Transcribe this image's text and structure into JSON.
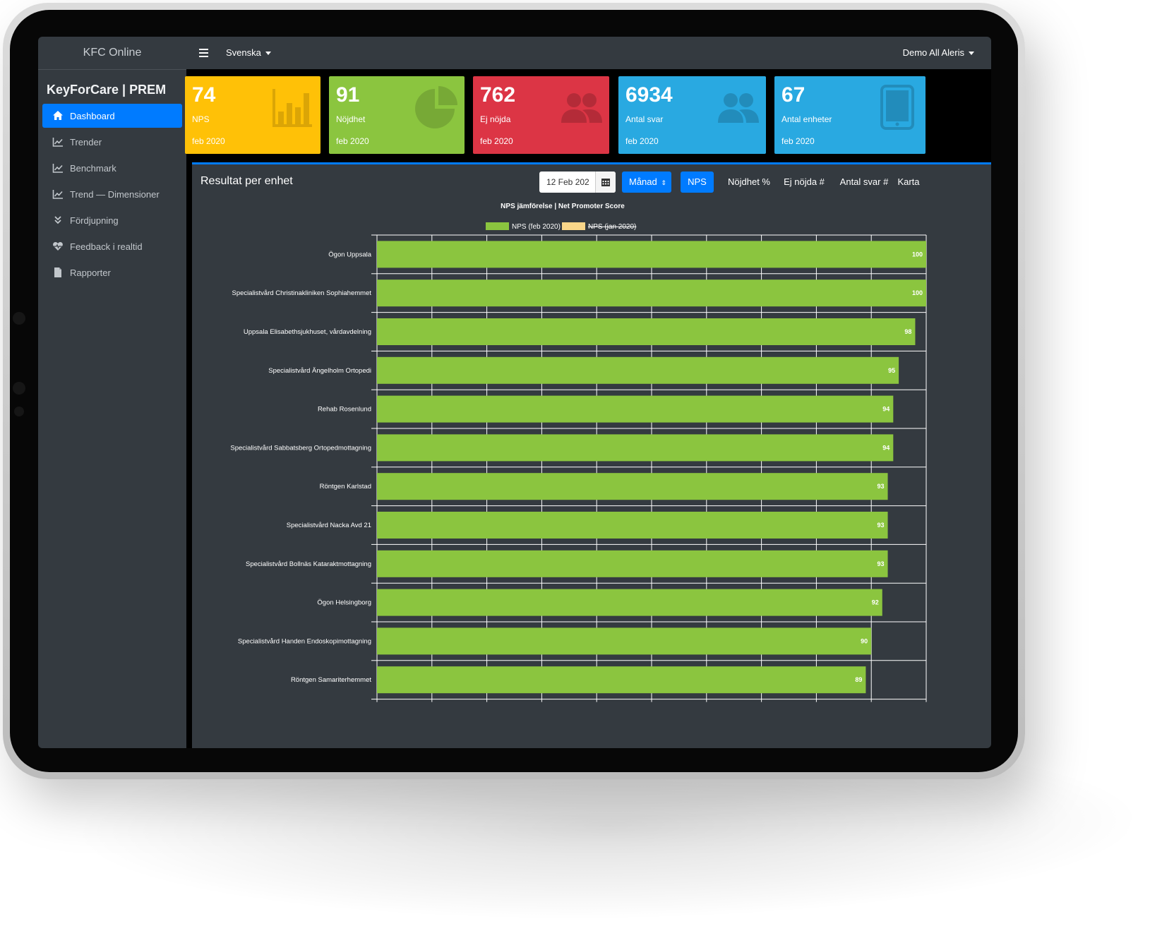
{
  "colors": {
    "primary": "#007bff",
    "sidebar_bg": "#343a40",
    "card_yellow": "#ffc107",
    "card_green": "#8bc53f",
    "card_red": "#dc3545",
    "card_blue": "#29a9e1",
    "bar_current": "#8bc53f",
    "bar_previous": "#f9d689"
  },
  "sidebar": {
    "app_name": "KFC Online",
    "product_title": "KeyForCare | PREM",
    "items": [
      {
        "label": "Dashboard",
        "icon": "home-icon",
        "active": true
      },
      {
        "label": "Trender",
        "icon": "line-chart-icon"
      },
      {
        "label": "Benchmark",
        "icon": "line-chart-icon"
      },
      {
        "label": "Trend — Dimensioner",
        "icon": "line-chart-icon"
      },
      {
        "label": "Fördjupning",
        "icon": "double-chevron-down-icon"
      },
      {
        "label": "Feedback i realtid",
        "icon": "heartbeat-icon"
      },
      {
        "label": "Rapporter",
        "icon": "file-icon"
      }
    ]
  },
  "topbar": {
    "menu_icon": "hamburger-icon",
    "language": "Svenska",
    "user": "Demo All Aleris"
  },
  "cards": [
    {
      "value": "74",
      "label": "NPS",
      "period": "feb 2020",
      "icon": "bar-chart-icon",
      "color": "#ffc107"
    },
    {
      "value": "91",
      "label": "Nöjdhet",
      "period": "feb 2020",
      "icon": "pie-chart-icon",
      "color": "#8bc53f"
    },
    {
      "value": "762",
      "label": "Ej nöjda",
      "period": "feb 2020",
      "icon": "users-icon",
      "color": "#dc3545"
    },
    {
      "value": "6934",
      "label": "Antal svar",
      "period": "feb 2020",
      "icon": "users-icon",
      "color": "#29a9e1"
    },
    {
      "value": "67",
      "label": "Antal enheter",
      "period": "feb 2020",
      "icon": "tablet-icon",
      "color": "#29a9e1"
    }
  ],
  "panel": {
    "title": "Resultat per enhet",
    "date_value": "12 Feb 202",
    "period_select": "Månad",
    "tabs": [
      {
        "label": "NPS",
        "active": true
      },
      {
        "label": "Nöjdhet %"
      },
      {
        "label": "Ej nöjda #"
      },
      {
        "label": "Antal svar #"
      },
      {
        "label": "Karta"
      }
    ]
  },
  "chart_data": {
    "type": "bar",
    "orientation": "horizontal",
    "title": "NPS jämförelse | Net Promoter Score",
    "legend": [
      {
        "name": "NPS (feb 2020)",
        "color": "#8bc53f",
        "hidden": false
      },
      {
        "name": "NPS (jan 2020)",
        "color": "#f9d689",
        "hidden": true
      }
    ],
    "legend_position": "top",
    "grid": true,
    "xlim": [
      0,
      100
    ],
    "categories": [
      "Ögon Uppsala",
      "Specialistvård Christinakliniken Sophiahemmet",
      "Uppsala Elisabethsjukhuset, vårdavdelning",
      "Specialistvård Ängelholm Ortopedi",
      "Rehab Rosenlund",
      "Specialistvård Sabbatsberg Ortopedmottagning",
      "Röntgen Karlstad",
      "Specialistvård Nacka Avd 21",
      "Specialistvård Bollnäs Kataraktmottagning",
      "Ögon Helsingborg",
      "Specialistvård Handen Endoskopimottagning",
      "Röntgen Samariterhemmet"
    ],
    "series": [
      {
        "name": "NPS (feb 2020)",
        "values": [
          100,
          100,
          98,
          95,
          94,
          94,
          93,
          93,
          93,
          92,
          90,
          89
        ]
      }
    ]
  }
}
